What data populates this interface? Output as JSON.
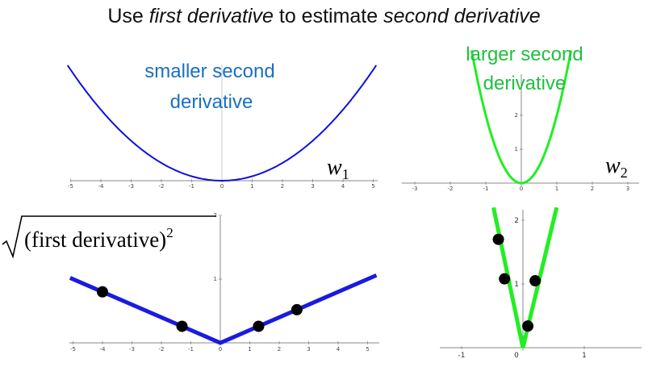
{
  "title": {
    "prefix": "Use ",
    "term1": "first derivative",
    "middle": " to estimate ",
    "term2": "second derivative"
  },
  "labels": {
    "w1_label_line1": "smaller second",
    "w1_label_line2": "derivative",
    "w2_label_line1": "larger second",
    "w2_label_line2": "derivative",
    "w1_symbol": "w",
    "w1_subscript": "1",
    "w2_symbol": "w",
    "w2_subscript": "2",
    "formula_text": "(first derivative)",
    "formula_power": "2"
  },
  "colors": {
    "blue_curve": "#1010dd",
    "blue_thick": "#1a1ae0",
    "green_curve": "#22ee22",
    "blue_label": "#1a6fc4",
    "green_label": "#20c040",
    "points": "#000000"
  },
  "chart_data": [
    {
      "type": "line",
      "panel": "w1-loss",
      "function": "y = 0.5 * x^2 (small curvature)",
      "x_ticks": [
        "-5",
        "-4",
        "-3",
        "-2",
        "-1",
        "0",
        "1",
        "2",
        "3",
        "4",
        "5"
      ]
    },
    {
      "type": "line",
      "panel": "w2-loss",
      "function": "y = 2 * x^2 (large curvature)",
      "x_ticks": [
        "-3",
        "-2",
        "-1",
        "0",
        "1",
        "2",
        "3"
      ],
      "y_ticks": [
        "1",
        "2"
      ]
    },
    {
      "type": "line",
      "panel": "w1-gradient-magnitude",
      "function": "|slope| = k*|x|",
      "x_ticks": [
        "-5",
        "-4",
        "-3",
        "-2",
        "-1",
        "0",
        "1",
        "2",
        "3",
        "4",
        "5"
      ],
      "y_ticks": [
        "1",
        "2"
      ],
      "points": [
        {
          "x": -4,
          "y": 0.8
        },
        {
          "x": -1.3,
          "y": 0.26
        },
        {
          "x": 1.3,
          "y": 0.26
        },
        {
          "x": 2.6,
          "y": 0.52
        }
      ]
    },
    {
      "type": "line",
      "panel": "w2-gradient-magnitude",
      "function": "|slope| = K*|x|",
      "x_ticks": [
        "-1",
        "0",
        "1"
      ],
      "y_ticks": [
        "1",
        "2"
      ],
      "points": [
        {
          "x": -0.4,
          "y": 1.7
        },
        {
          "x": -0.3,
          "y": 1.08
        },
        {
          "x": 0.2,
          "y": 1.05
        },
        {
          "x": 0.08,
          "y": 0.34
        }
      ]
    }
  ]
}
